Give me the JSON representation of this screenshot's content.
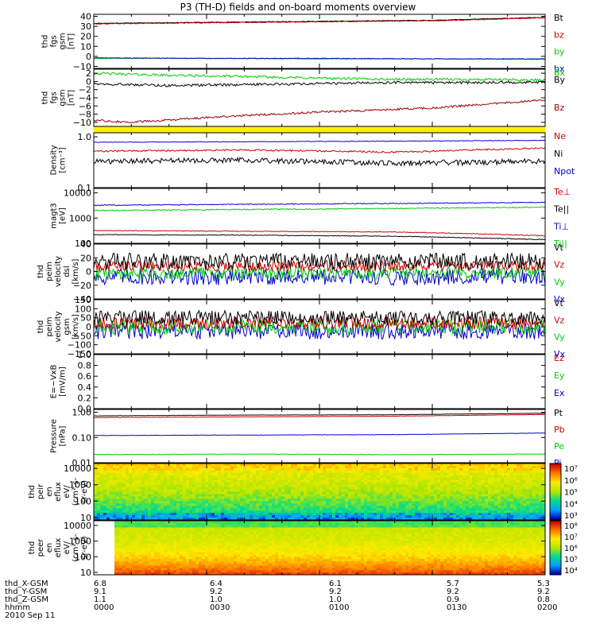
{
  "title": "P3 (TH-D) fields and on-board moments overview",
  "colors": {
    "black": "#000000",
    "red": "#cc0000",
    "darkred": "#990000",
    "green": "#00cc00",
    "blue": "#0000cc",
    "yellow": "#ffee00"
  },
  "chart_data": {
    "type": "line",
    "title": "P3 (TH-D) fields and on-board moments overview",
    "time_axis": {
      "start": "0000",
      "end": "0200",
      "tick_labels": [
        "0000",
        "0030",
        "0100",
        "0130",
        "0200"
      ],
      "date": "2010 Sep 11"
    },
    "panels": [
      {
        "id": "fgs_gsm_nT",
        "ylabel": [
          "thd",
          "fgs",
          "gsm",
          "[nT]"
        ],
        "ylim": [
          -12,
          42
        ],
        "yticks": [
          "40",
          "30",
          "20",
          "10",
          "0",
          "−10"
        ],
        "ytick_values": [
          40,
          30,
          20,
          10,
          0,
          -10
        ],
        "legend": [
          {
            "name": "Bt",
            "color": "#000000"
          },
          {
            "name": "bz",
            "color": "#cc0000"
          },
          {
            "name": "by",
            "color": "#00cc00"
          },
          {
            "name": "bx",
            "color": "#0000cc"
          }
        ],
        "series": [
          {
            "name": "Bt",
            "color": "#000000",
            "x_min": [
              0,
              30,
              60,
              90,
              120
            ],
            "values": [
              33,
              34,
              35,
              36,
              39
            ],
            "noise": 0.3
          },
          {
            "name": "bz",
            "color": "#cc0000",
            "x_min": [
              0,
              30,
              60,
              90,
              120
            ],
            "values": [
              32.5,
              33.5,
              34.5,
              35.5,
              38.5
            ],
            "noise": 0.3
          },
          {
            "name": "by",
            "color": "#00cc00",
            "x_min": [
              0,
              30,
              60,
              90,
              120
            ],
            "values": [
              -2,
              -2,
              -2.5,
              -2.5,
              -3
            ],
            "noise": 0.3
          },
          {
            "name": "bx",
            "color": "#0000cc",
            "x_min": [
              0,
              30,
              60,
              90,
              120
            ],
            "values": [
              -1.5,
              -2,
              -2,
              -2.5,
              -2.5
            ],
            "noise": 0.3
          }
        ]
      },
      {
        "id": "fgs_gsm_dp_nT",
        "ylabel": [
          "thd",
          "fgs",
          "gsm",
          "[nT]"
        ],
        "ylim": [
          -11,
          3
        ],
        "yticks": [
          "2",
          "0",
          "−2",
          "−4",
          "−6",
          "−8",
          "−10"
        ],
        "ytick_values": [
          2,
          0,
          -2,
          -4,
          -6,
          -8,
          -10
        ],
        "legend": [
          {
            "name": "Bx",
            "color": "#00cc00"
          },
          {
            "name": "By",
            "color": "#000000"
          },
          {
            "name": "Bz",
            "color": "#990000"
          }
        ],
        "series": [
          {
            "name": "Bx",
            "color": "#00cc00",
            "x_min": [
              0,
              20,
              40,
              60,
              80,
              100,
              120
            ],
            "values": [
              2,
              1.5,
              1.2,
              0.8,
              0.5,
              0.5,
              0.3
            ],
            "noise": 0.3
          },
          {
            "name": "By",
            "color": "#000000",
            "x_min": [
              0,
              20,
              40,
              60,
              80,
              100,
              120
            ],
            "values": [
              -0.5,
              -1,
              -0.8,
              -0.5,
              -0.3,
              -0.3,
              -0.2
            ],
            "noise": 0.3
          },
          {
            "name": "Bz",
            "color": "#990000",
            "x_min": [
              0,
              10,
              30,
              60,
              90,
              120
            ],
            "values": [
              -9.5,
              -10,
              -8.8,
              -7.5,
              -6.5,
              -4.5
            ],
            "noise": 0.25
          }
        ]
      },
      {
        "id": "density",
        "ylabel": [
          "Density",
          "[cm⁻³]"
        ],
        "scale": "log",
        "ylim": [
          0.1,
          1.2
        ],
        "yticks": [
          "1.0",
          "0.1"
        ],
        "ytick_values": [
          1.0,
          0.1
        ],
        "legend": [
          {
            "name": "Ne",
            "color": "#cc0000"
          },
          {
            "name": "Ni",
            "color": "#000000"
          },
          {
            "name": "Npot",
            "color": "#0000cc"
          }
        ],
        "series": [
          {
            "name": "Npot",
            "color": "#0000cc",
            "x_min": [
              0,
              40,
              80,
              120
            ],
            "values": [
              0.78,
              0.8,
              0.82,
              0.85
            ],
            "noise": 0.01
          },
          {
            "name": "Ne",
            "color": "#cc0000",
            "x_min": [
              0,
              40,
              80,
              120
            ],
            "values": [
              0.52,
              0.55,
              0.5,
              0.6
            ],
            "noise": 0.02
          },
          {
            "name": "Ni",
            "color": "#000000",
            "x_min": [
              0,
              40,
              80,
              120
            ],
            "values": [
              0.33,
              0.35,
              0.3,
              0.33
            ],
            "noise": 0.04
          }
        ]
      },
      {
        "id": "temperature",
        "ylabel": [
          "magt3",
          "[eV]"
        ],
        "scale": "log",
        "ylim": [
          100,
          15000
        ],
        "yticks": [
          "10000",
          "1000",
          "100"
        ],
        "ytick_values": [
          10000,
          1000,
          100
        ],
        "legend": [
          {
            "name": "Te⊥",
            "color": "#cc0000"
          },
          {
            "name": "Te||",
            "color": "#000000"
          },
          {
            "name": "Ti⊥",
            "color": "#0000cc"
          },
          {
            "name": "Ti||",
            "color": "#00cc00"
          }
        ],
        "series": [
          {
            "name": "Ti⊥",
            "color": "#0000cc",
            "x_min": [
              0,
              40,
              80,
              120
            ],
            "values": [
              3200,
              3500,
              3800,
              4200
            ],
            "noise": 150
          },
          {
            "name": "Ti||",
            "color": "#00cc00",
            "x_min": [
              0,
              40,
              80,
              120
            ],
            "values": [
              2000,
              2200,
              2400,
              2700
            ],
            "noise": 100
          },
          {
            "name": "Te⊥",
            "color": "#cc0000",
            "x_min": [
              0,
              40,
              80,
              120
            ],
            "values": [
              320,
              300,
              280,
              200
            ],
            "noise": 8
          },
          {
            "name": "Te||",
            "color": "#000000",
            "x_min": [
              0,
              40,
              80,
              120
            ],
            "values": [
              220,
              210,
              190,
              140
            ],
            "noise": 6
          }
        ]
      },
      {
        "id": "peim_velocity_dsl",
        "ylabel": [
          "thd",
          "peim",
          "velocity",
          "dsl",
          "[km/s]"
        ],
        "ylim": [
          -40,
          40
        ],
        "yticks": [
          "40",
          "20",
          "0",
          "−20",
          "−40"
        ],
        "ytick_values": [
          40,
          20,
          0,
          -20,
          -40
        ],
        "legend": [
          {
            "name": "Vt",
            "color": "#000000"
          },
          {
            "name": "Vz",
            "color": "#cc0000"
          },
          {
            "name": "Vy",
            "color": "#00cc00"
          },
          {
            "name": "Vx",
            "color": "#0000cc"
          }
        ],
        "series": [
          {
            "name": "Vx",
            "color": "#0000cc",
            "x_min": [
              0,
              120
            ],
            "values": [
              -8,
              -8
            ],
            "noise": 12
          },
          {
            "name": "Vy",
            "color": "#00cc00",
            "x_min": [
              0,
              120
            ],
            "values": [
              -2,
              -2
            ],
            "noise": 9
          },
          {
            "name": "Vz",
            "color": "#cc0000",
            "x_min": [
              0,
              120
            ],
            "values": [
              8,
              8
            ],
            "noise": 8
          },
          {
            "name": "Vt",
            "color": "#000000",
            "x_min": [
              0,
              120
            ],
            "values": [
              15,
              15
            ],
            "noise": 12
          }
        ]
      },
      {
        "id": "peim_velocity_gsm",
        "ylabel": [
          "thd",
          "peim",
          "velocity",
          "gsm",
          "[km/s]"
        ],
        "ylim": [
          -150,
          150
        ],
        "yticks": [
          "150",
          "100",
          "50",
          "0",
          "−50",
          "−100",
          "−150"
        ],
        "ytick_values": [
          150,
          100,
          50,
          0,
          -50,
          -100,
          -150
        ],
        "legend": [
          {
            "name": "Vt",
            "color": "#000000"
          },
          {
            "name": "Vz",
            "color": "#cc0000"
          },
          {
            "name": "Vy",
            "color": "#00cc00"
          },
          {
            "name": "Vx",
            "color": "#0000cc"
          }
        ],
        "series": [
          {
            "name": "Vx",
            "color": "#0000cc",
            "x_min": [
              0,
              120
            ],
            "values": [
              -25,
              -25
            ],
            "noise": 45
          },
          {
            "name": "Vy",
            "color": "#00cc00",
            "x_min": [
              0,
              120
            ],
            "values": [
              0,
              0
            ],
            "noise": 40
          },
          {
            "name": "Vz",
            "color": "#cc0000",
            "x_min": [
              0,
              120
            ],
            "values": [
              20,
              20
            ],
            "noise": 35
          },
          {
            "name": "Vt",
            "color": "#000000",
            "x_min": [
              0,
              120
            ],
            "values": [
              50,
              50
            ],
            "noise": 40
          }
        ]
      },
      {
        "id": "e_vxb",
        "ylabel": [
          "E=−VxB",
          "[mV/m]"
        ],
        "ylim": [
          0,
          1.0
        ],
        "yticks": [
          "1.0",
          "0.8",
          "0.6",
          "0.4",
          "0.2",
          "0.0"
        ],
        "ytick_values": [
          1.0,
          0.8,
          0.6,
          0.4,
          0.2,
          0.0
        ],
        "legend": [
          {
            "name": "Ez",
            "color": "#cc0000"
          },
          {
            "name": "Ey",
            "color": "#00cc00"
          },
          {
            "name": "Ex",
            "color": "#0000cc"
          }
        ],
        "series": []
      },
      {
        "id": "pressure",
        "ylabel": [
          "Pressure",
          "[nPa]"
        ],
        "scale": "log",
        "ylim": [
          0.01,
          1.3
        ],
        "yticks": [
          "1.00",
          "0.10",
          "0.01"
        ],
        "ytick_values": [
          1.0,
          0.1,
          0.01
        ],
        "legend": [
          {
            "name": "Pt",
            "color": "#000000"
          },
          {
            "name": "Pb",
            "color": "#cc0000"
          },
          {
            "name": "Pe",
            "color": "#00cc00"
          },
          {
            "name": "Pi",
            "color": "#0000cc"
          }
        ],
        "series": [
          {
            "name": "Pt",
            "color": "#000000",
            "x_min": [
              0,
              40,
              80,
              120
            ],
            "values": [
              0.72,
              0.78,
              0.8,
              0.92
            ],
            "noise": 0.01
          },
          {
            "name": "Pb",
            "color": "#cc0000",
            "x_min": [
              0,
              40,
              80,
              120
            ],
            "values": [
              0.62,
              0.66,
              0.7,
              0.82
            ],
            "noise": 0.008
          },
          {
            "name": "Pi",
            "color": "#0000cc",
            "x_min": [
              0,
              40,
              80,
              120
            ],
            "values": [
              0.12,
              0.125,
              0.13,
              0.15
            ],
            "noise": 0.002
          },
          {
            "name": "Pe",
            "color": "#00cc00",
            "x_min": [
              0,
              40,
              80,
              120
            ],
            "values": [
              0.021,
              0.022,
              0.021,
              0.022
            ],
            "noise": 0.0005
          }
        ]
      },
      {
        "id": "peir_spectrogram",
        "ylabel": [
          "thd",
          "peir",
          "en",
          "eflux",
          "eV/",
          "(cm²-s-",
          "sr-eV)"
        ],
        "scale": "log",
        "type": "heatmap",
        "ylim": [
          7,
          20000
        ],
        "yticks": [
          "10000",
          "1000",
          "100",
          "10"
        ],
        "ytick_values": [
          10000,
          1000,
          100,
          10
        ],
        "colorbar_ticks": [
          "10⁷",
          "10⁶",
          "10⁵",
          "10⁴",
          "10³"
        ],
        "colorbar_range": [
          1000,
          10000000
        ]
      },
      {
        "id": "peer_spectrogram",
        "ylabel": [
          "thd",
          "peer",
          "en",
          "eflux",
          "eV/",
          "(cm²-s-",
          "sr-eV)"
        ],
        "scale": "log",
        "type": "heatmap",
        "ylim": [
          7,
          20000
        ],
        "yticks": [
          "10000",
          "1000",
          "100",
          "10"
        ],
        "ytick_values": [
          10000,
          1000,
          100,
          10
        ],
        "colorbar_ticks": [
          "10⁸",
          "10⁷",
          "10⁶",
          "10⁵",
          "10⁴"
        ],
        "colorbar_range": [
          10000,
          100000000
        ]
      }
    ]
  },
  "orbit": {
    "rows": [
      {
        "label": "thd_X-GSM",
        "values": [
          "6.8",
          "6.4",
          "6.1",
          "5.7",
          "5.3"
        ]
      },
      {
        "label": "thd_Y-GSM",
        "values": [
          "9.1",
          "9.2",
          "9.2",
          "9.2",
          "9.2"
        ]
      },
      {
        "label": "thd_Z-GSM",
        "values": [
          "1.1",
          "1.0",
          "1.0",
          "0.9",
          "0.8"
        ]
      },
      {
        "label": "hhmm",
        "values": [
          "0000",
          "0030",
          "0100",
          "0130",
          "0200"
        ]
      }
    ],
    "date": "2010 Sep 11"
  }
}
